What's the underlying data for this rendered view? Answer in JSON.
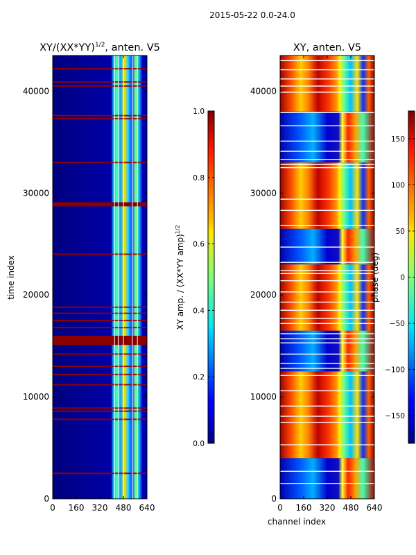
{
  "figure": {
    "suptitle": "2015-05-22 0.0-24.0"
  },
  "chart_data": [
    {
      "type": "heatmap",
      "title": "XY/(XX*YY)",
      "title_exponent": "1/2",
      "title_suffix": ", anten. V5",
      "xlabel": "",
      "ylabel": "time index",
      "xticks": [
        "0",
        "160",
        "320",
        "480",
        "640"
      ],
      "yticks": [
        "0",
        "10000",
        "20000",
        "30000",
        "40000"
      ],
      "xlim": [
        0,
        640
      ],
      "ylim": [
        0,
        43500
      ],
      "colormap": "jet",
      "colorbar": {
        "label": "XY amp. / (XX*YY amp)",
        "label_exponent": "1/2",
        "range": [
          0.0,
          1.0
        ],
        "ticks": [
          "0.0",
          "0.2",
          "0.4",
          "0.6",
          "0.8",
          "1.0"
        ],
        "tick_values": [
          0.0,
          0.2,
          0.4,
          0.6,
          0.8,
          1.0
        ]
      },
      "saturated_time_rows": [
        2500,
        7800,
        8600,
        8900,
        11200,
        12200,
        13000,
        14200,
        15300,
        15500,
        15700,
        15900,
        16800,
        17500,
        18200,
        18800,
        24000,
        28800,
        29000,
        33000,
        37300,
        37600,
        40500,
        40900,
        42200
      ],
      "bright_channel_band": [
        410,
        600
      ],
      "grid_channels": [
        420,
        445,
        480,
        540,
        575
      ]
    },
    {
      "type": "heatmap",
      "title": "XY, anten. V5",
      "xlabel": "channel index",
      "ylabel": "",
      "xticks": [
        "0",
        "160",
        "320",
        "480",
        "640"
      ],
      "yticks": [
        "0",
        "10000",
        "20000",
        "30000",
        "40000"
      ],
      "xlim": [
        0,
        640
      ],
      "ylim": [
        0,
        43500
      ],
      "colormap": "jet",
      "colorbar": {
        "label": "phase (deg)",
        "range": [
          -180,
          180
        ],
        "ticks": [
          "−150",
          "−100",
          "−50",
          "0",
          "50",
          "100",
          "150"
        ],
        "tick_values": [
          -150,
          -100,
          -50,
          0,
          50,
          100,
          150
        ]
      },
      "white_time_rows": [
        1500,
        2700,
        5300,
        7500,
        8100,
        9100,
        10600,
        12100,
        12800,
        13300,
        14200,
        15300,
        15700,
        16200,
        17200,
        17700,
        18500,
        19300,
        20300,
        21400,
        22100,
        22400,
        23200,
        24700,
        26800,
        28300,
        29400,
        32500,
        32800,
        33300,
        34100,
        35100,
        36600,
        37900,
        39900,
        40500,
        41200,
        42100,
        43000
      ],
      "bright_channel_band": [
        410,
        640
      ]
    }
  ]
}
